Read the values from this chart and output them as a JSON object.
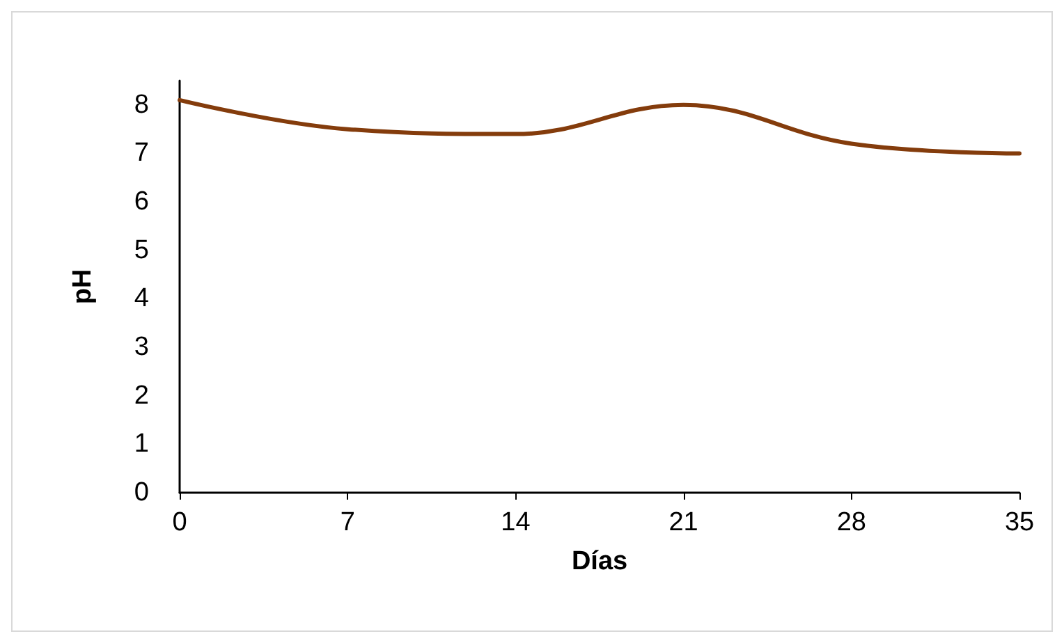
{
  "chart_data": {
    "type": "line",
    "xlabel": "Días",
    "ylabel": "pH",
    "x": [
      0,
      7,
      14,
      21,
      28,
      35
    ],
    "series": [
      {
        "color": "#843c0c",
        "values": [
          8.1,
          7.5,
          7.4,
          8.0,
          7.2,
          7.0
        ]
      }
    ],
    "xlim": [
      0,
      35
    ],
    "xticks": [
      0,
      7,
      14,
      21,
      28,
      35
    ],
    "ylim": [
      0,
      8.5
    ],
    "yticks": [
      0,
      1,
      2,
      3,
      4,
      5,
      6,
      7,
      8
    ],
    "grid": false,
    "marker": "none",
    "line_style": "solid"
  }
}
